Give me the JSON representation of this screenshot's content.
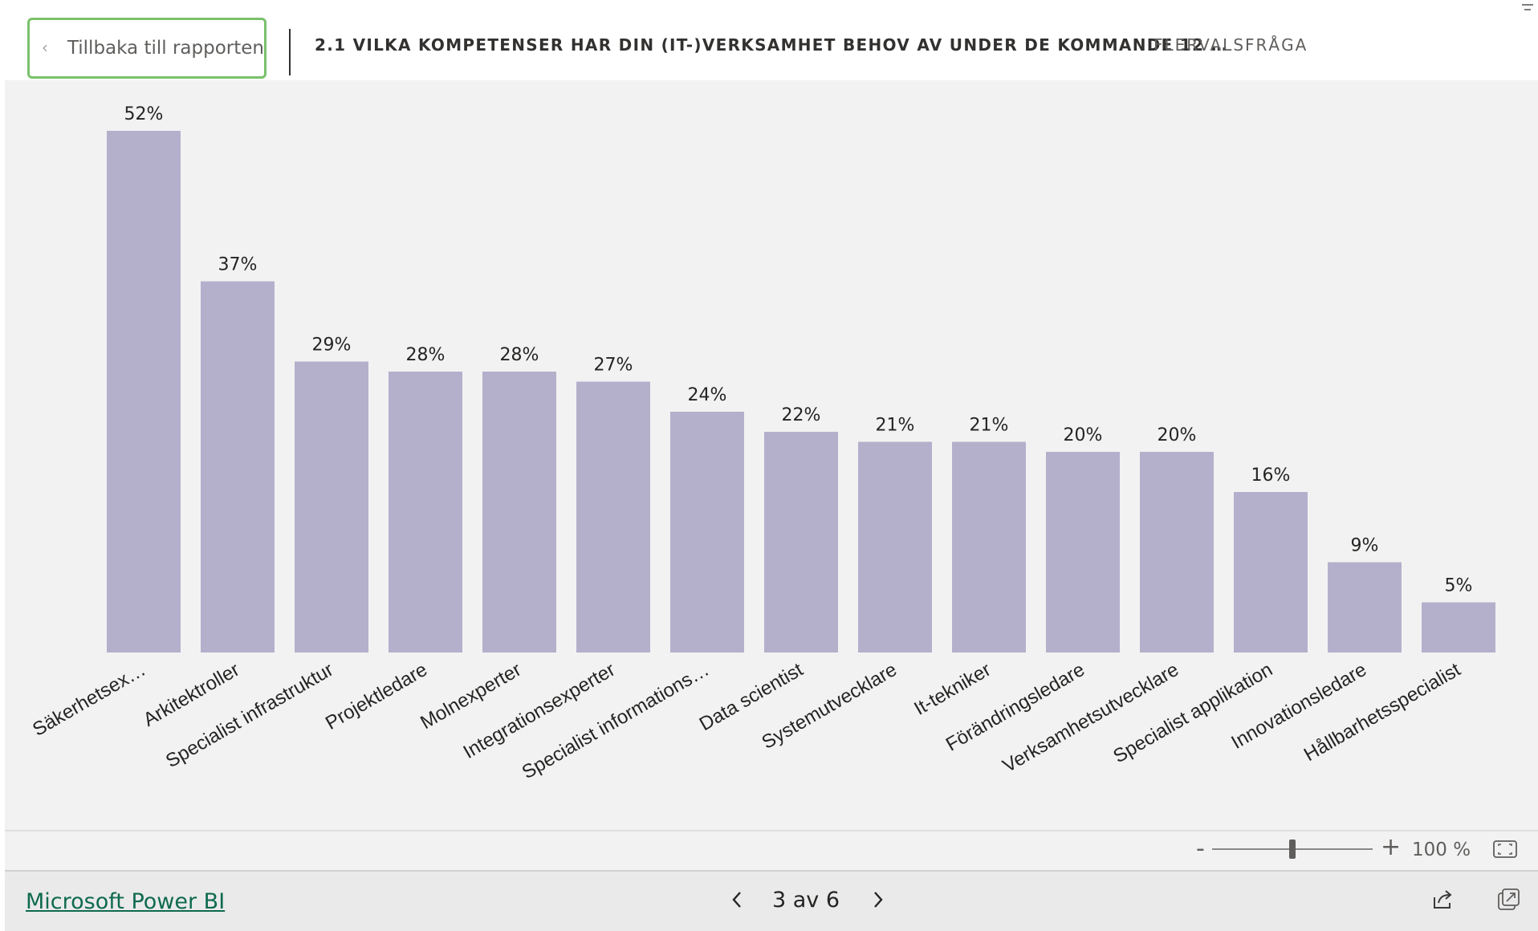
{
  "header": {
    "back_label": "Tillbaka till rapporten",
    "question_title": "2.1 VILKA KOMPETENSER HAR DIN (IT-)VERKSAMHET BEHOV AV UNDER DE KOMMANDE 12 …",
    "question_type": "FLERVALSFRÅGA"
  },
  "chart_data": {
    "type": "bar",
    "categories": [
      "Säkerhetsex…",
      "Arkitektroller",
      "Specialist infrastruktur",
      "Projektledare",
      "Molnexperter",
      "Integrationsexperter",
      "Specialist informations…",
      "Data scientist",
      "Systemutvecklare",
      "It-tekniker",
      "Förändringsledare",
      "Verksamhetsutvecklare",
      "Specialist applikation",
      "Innovationsledare",
      "Hållbarhetsspecialist"
    ],
    "values": [
      52,
      37,
      29,
      28,
      28,
      27,
      24,
      22,
      21,
      21,
      20,
      20,
      16,
      9,
      5
    ],
    "value_labels": [
      "52%",
      "37%",
      "29%",
      "28%",
      "28%",
      "27%",
      "24%",
      "22%",
      "21%",
      "21%",
      "20%",
      "20%",
      "16%",
      "9%",
      "5%"
    ],
    "unit": "%",
    "ylim": [
      0,
      52
    ],
    "grid": false,
    "bar_color": "#b4b0cc",
    "title": "",
    "xlabel": "",
    "ylabel": ""
  },
  "zoom": {
    "minus": "-",
    "plus": "+",
    "level": "100 %",
    "slider_fraction": 0.5
  },
  "footer": {
    "brand": "Microsoft Power BI",
    "page_indicator": "3 av 6"
  },
  "colors": {
    "accent_border": "#7ac16b",
    "brand_link": "#0e6a4e",
    "canvas_bg": "#f2f2f2"
  },
  "icons": {
    "back": "chevron-left-icon",
    "prev": "chevron-left-icon",
    "next": "chevron-right-icon",
    "fit": "fit-to-page-icon",
    "share": "share-icon",
    "popout": "open-in-new-window-icon",
    "filter": "filter-lines-icon"
  }
}
